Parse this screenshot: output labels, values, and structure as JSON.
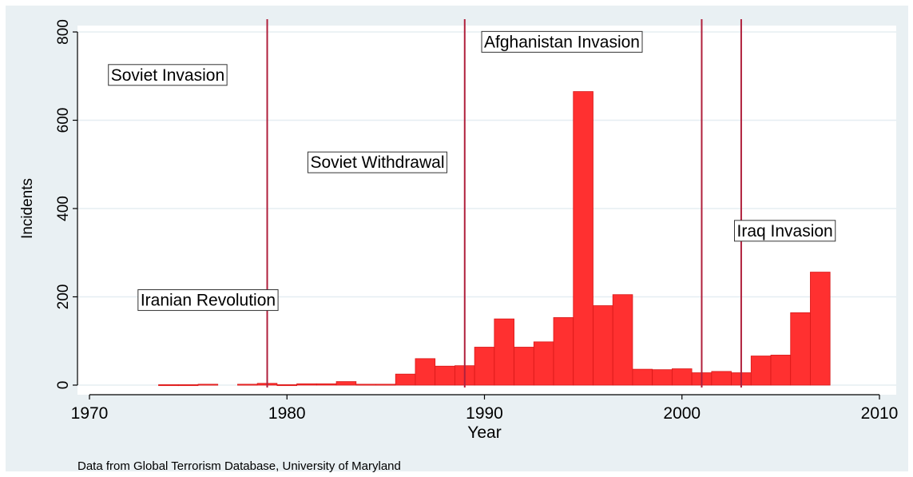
{
  "chart_data": {
    "type": "bar",
    "xlabel": "Year",
    "ylabel": "Incidents",
    "xlim": [
      1970,
      2010
    ],
    "ylim": [
      0,
      800
    ],
    "x_ticks": [
      "1970",
      "1980",
      "1990",
      "2000",
      "2010"
    ],
    "y_ticks": [
      "0",
      "200",
      "400",
      "600",
      "800"
    ],
    "bin_width": 1,
    "bars": [
      {
        "x": 1974,
        "y": 1
      },
      {
        "x": 1975,
        "y": 1
      },
      {
        "x": 1976,
        "y": 2
      },
      {
        "x": 1978,
        "y": 2
      },
      {
        "x": 1979,
        "y": 4
      },
      {
        "x": 1980,
        "y": 1
      },
      {
        "x": 1981,
        "y": 3
      },
      {
        "x": 1982,
        "y": 3
      },
      {
        "x": 1983,
        "y": 8
      },
      {
        "x": 1984,
        "y": 2
      },
      {
        "x": 1985,
        "y": 2
      },
      {
        "x": 1986,
        "y": 25
      },
      {
        "x": 1987,
        "y": 60
      },
      {
        "x": 1988,
        "y": 43
      },
      {
        "x": 1989,
        "y": 44
      },
      {
        "x": 1990,
        "y": 86
      },
      {
        "x": 1991,
        "y": 150
      },
      {
        "x": 1992,
        "y": 86
      },
      {
        "x": 1993,
        "y": 98
      },
      {
        "x": 1994,
        "y": 153
      },
      {
        "x": 1995,
        "y": 665
      },
      {
        "x": 1996,
        "y": 180
      },
      {
        "x": 1997,
        "y": 205
      },
      {
        "x": 1998,
        "y": 36
      },
      {
        "x": 1999,
        "y": 35
      },
      {
        "x": 2000,
        "y": 37
      },
      {
        "x": 2001,
        "y": 28
      },
      {
        "x": 2002,
        "y": 31
      },
      {
        "x": 2003,
        "y": 28
      },
      {
        "x": 2004,
        "y": 66
      },
      {
        "x": 2005,
        "y": 68
      },
      {
        "x": 2006,
        "y": 164
      },
      {
        "x": 2007,
        "y": 256
      }
    ],
    "event_lines": [
      1979,
      1989,
      2001,
      2003
    ],
    "annotations": [
      {
        "text": "Soviet Invasion",
        "x": 1971.0,
        "y": 700
      },
      {
        "text": "Soviet Withdrawal",
        "x": 1981.1,
        "y": 502
      },
      {
        "text": "Afghanistan Invasion",
        "x": 1989.9,
        "y": 775
      },
      {
        "text": "Iraq Invasion",
        "x": 2002.7,
        "y": 347
      },
      {
        "text": "Iranian Revolution",
        "x": 1972.5,
        "y": 190
      }
    ],
    "note": "Data from Global Terrorism Database, University of Maryland",
    "colors": {
      "bar": "#ff3030",
      "bar_edge": "#d81818",
      "event_line": "#b0203c",
      "background": "#e9f0f3",
      "plot_area": "#ffffff",
      "grid": "#e6eef2"
    },
    "grid": true
  }
}
